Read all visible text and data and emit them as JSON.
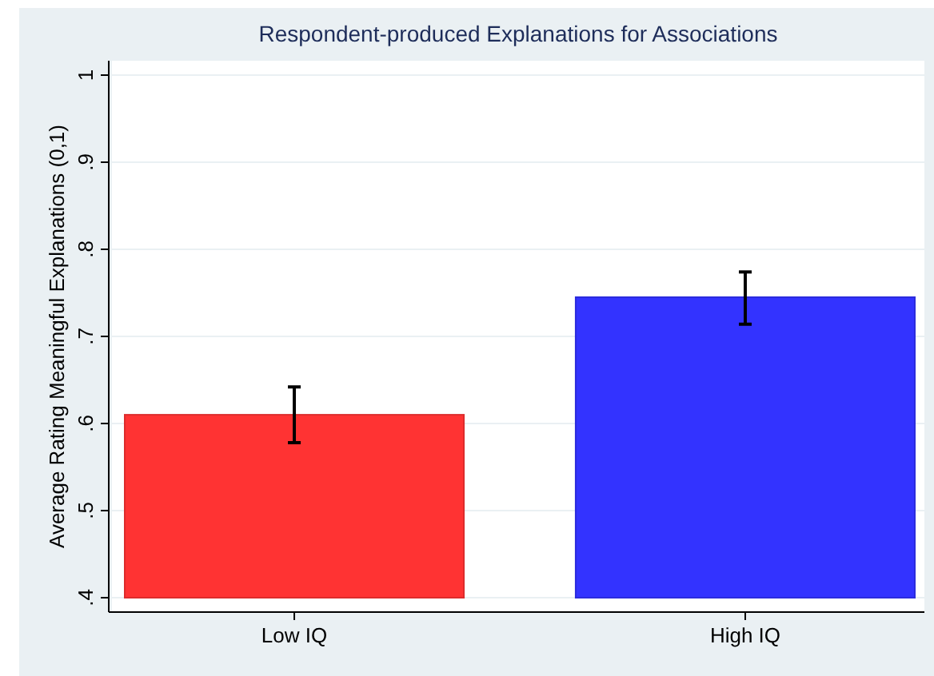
{
  "chart_data": {
    "type": "bar",
    "title": "Respondent-produced Explanations for Associations",
    "ylabel": "Average Rating Meaningful Explanations (0,1)",
    "categories": [
      "Low IQ",
      "High IQ"
    ],
    "values": [
      0.61,
      0.745
    ],
    "colors": [
      "#ff3333",
      "#3333ff"
    ],
    "errors": [
      [
        0.578,
        0.642
      ],
      [
        0.714,
        0.774
      ]
    ],
    "ylim": [
      0.4,
      1
    ],
    "yticks": [
      {
        "value": 0.4,
        "label": ".4"
      },
      {
        "value": 0.5,
        "label": ".5"
      },
      {
        "value": 0.6,
        "label": ".6"
      },
      {
        "value": 0.7,
        "label": ".7"
      },
      {
        "value": 0.8,
        "label": ".8"
      },
      {
        "value": 0.9,
        "label": ".9"
      },
      {
        "value": 1,
        "label": "1"
      }
    ],
    "grid": "y"
  }
}
